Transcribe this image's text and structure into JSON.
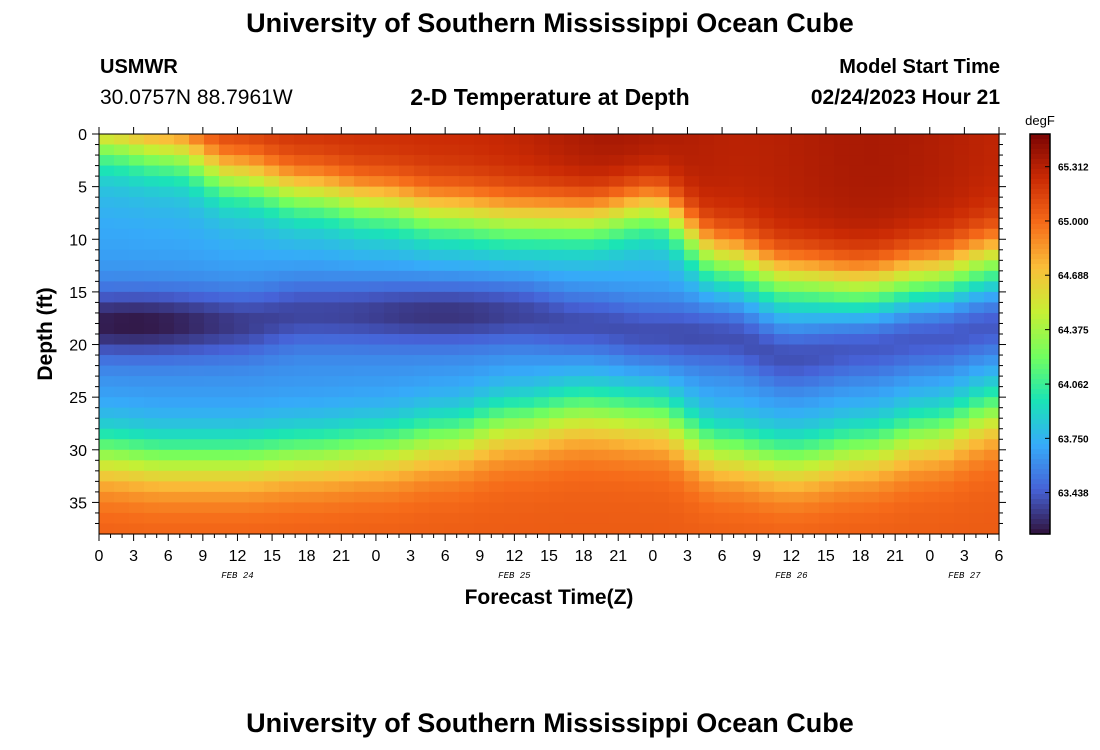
{
  "header": {
    "title": "University of Southern Mississippi Ocean Cube",
    "station_name": "USMWR",
    "station_coords": "30.0757N  88.7961W",
    "subtitle": "2-D Temperature at Depth",
    "model_label": "Model Start Time",
    "model_time": "02/24/2023 Hour 21",
    "footer_title": "University of Southern Mississippi Ocean Cube"
  },
  "chart_data": {
    "type": "heatmap",
    "xlabel": "Forecast Time(Z)",
    "ylabel": "Depth (ft)",
    "colorbar_label": "degF",
    "x_range_hours": [
      0,
      78
    ],
    "x_tick_hours": [
      0,
      3,
      6,
      9,
      12,
      15,
      18,
      21,
      24,
      27,
      30,
      33,
      36,
      39,
      42,
      45,
      48,
      51,
      54,
      57,
      60,
      63,
      66,
      69,
      72,
      75,
      78
    ],
    "x_tick_labels": [
      "0",
      "3",
      "6",
      "9",
      "12",
      "15",
      "18",
      "21",
      "0",
      "3",
      "6",
      "9",
      "12",
      "15",
      "18",
      "21",
      "0",
      "3",
      "6",
      "9",
      "12",
      "15",
      "18",
      "21",
      "0",
      "3",
      "6"
    ],
    "date_labels": [
      {
        "text": "FEB 24",
        "hour": 12
      },
      {
        "text": "FEB 25",
        "hour": 36
      },
      {
        "text": "FEB 26",
        "hour": 60
      },
      {
        "text": "FEB 27",
        "hour": 75
      }
    ],
    "y_range": [
      0,
      38
    ],
    "y_inverted": true,
    "y_ticks": [
      0,
      5,
      10,
      15,
      20,
      25,
      30,
      35
    ],
    "colorbar_range": [
      63.2,
      65.5
    ],
    "colorbar_ticks": [
      "65.312",
      "65.000",
      "64.688",
      "64.375",
      "64.062",
      "63.750",
      "63.438"
    ],
    "colormap": [
      "#30123b",
      "#4662d7",
      "#36aaf9",
      "#1ae4b6",
      "#72fe5e",
      "#c7ef34",
      "#fabe39",
      "#f66b19",
      "#ca2a04",
      "#7a0403"
    ],
    "field_description": {
      "x_hours_knots": [
        0,
        6,
        12,
        18,
        24,
        30,
        36,
        42,
        48,
        54,
        60,
        66,
        72,
        78
      ],
      "warm_top_base_depth_ft": [
        0.5,
        1.5,
        4.0,
        5.5,
        6.5,
        7.5,
        8.0,
        8.0,
        7.0,
        11.5,
        13.5,
        14.0,
        13.0,
        11.5
      ],
      "cold_core_depth_ft": [
        18,
        18,
        18,
        17,
        17,
        17,
        17,
        18,
        19,
        19,
        21,
        20,
        19,
        18
      ],
      "warm_bottom_top_depth_ft": [
        30.5,
        31.0,
        31.0,
        30.5,
        30.0,
        29.0,
        27.5,
        26.5,
        27.0,
        30.0,
        31.0,
        30.0,
        28.5,
        26.5
      ]
    }
  }
}
